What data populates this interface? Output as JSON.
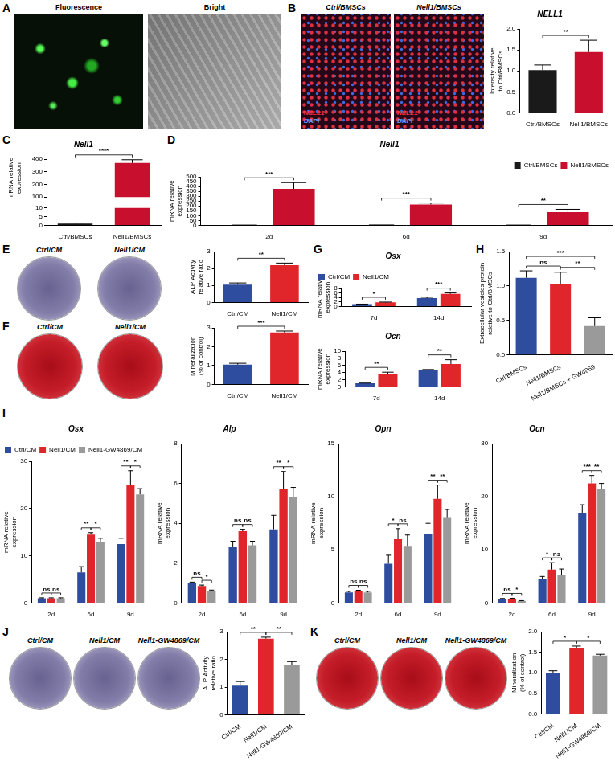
{
  "panel_labels": [
    "A",
    "B",
    "C",
    "D",
    "E",
    "F",
    "G",
    "H",
    "I",
    "J",
    "K"
  ],
  "images": [
    {
      "titles": [
        "Fluorescence",
        "Bright"
      ]
    },
    {
      "titles": [
        "Ctrl/BMSCs",
        "Nell1/BMSCs"
      ],
      "stains": [
        "NELL1",
        "DAPI"
      ]
    },
    {
      "titles": [
        "Ctrl/CM",
        "Nell1/CM"
      ]
    },
    {
      "titles": [
        "Ctrl/CM",
        "Nell1/CM"
      ]
    },
    {
      "titles": [
        "Ctrl/CM",
        "Nell1/CM",
        "Nell1-GW4869/CM"
      ]
    },
    {
      "titles": [
        "Ctrl/CM",
        "Nell1/CM",
        "Nell1-GW4869/CM"
      ]
    }
  ],
  "chart_data": [
    {
      "type": "bar",
      "title": "NELL1",
      "y_label": "Intensity relative to Ctrl/BMSCs",
      "categories": [
        "Ctrl/BMSCs",
        "Nell1/BMSCs"
      ],
      "values": [
        1.02,
        1.45
      ],
      "errors": [
        0.12,
        0.28
      ],
      "colors": [
        "#1a1a1a",
        "#c8102e"
      ],
      "ylim": [
        0,
        2
      ],
      "yticks": [
        {
          "value": 0,
          "label": "0.0"
        },
        {
          "value": 0.5,
          "label": "0.5"
        },
        {
          "value": 1,
          "label": "1.0"
        },
        {
          "value": 1.5,
          "label": "1.5"
        },
        {
          "value": 2,
          "label": "2.0"
        }
      ],
      "grid": false,
      "significance": [
        {
          "pair": [
            0,
            1
          ],
          "label": "**"
        }
      ]
    },
    {
      "type": "bar",
      "title": "Nell1",
      "y_label": "mRNA relative expression",
      "categories": [
        "Ctrl/BMSCs",
        "Nell1/BMSCs"
      ],
      "values": [
        1,
        370
      ],
      "errors": [
        0.3,
        25
      ],
      "colors": [
        "#1a1a1a",
        "#c8102e"
      ],
      "ylim": [
        0,
        400
      ],
      "axis_break": [
        10,
        100
      ],
      "yticks": [
        0,
        5,
        10,
        100,
        200,
        300,
        400
      ],
      "grid": false,
      "significance": [
        {
          "pair": [
            0,
            1
          ],
          "label": "****"
        }
      ]
    },
    {
      "type": "bar",
      "title": "Nell1",
      "y_label": "mRNA relative expression",
      "categories": [
        "2d",
        "6d",
        "9d"
      ],
      "series": [
        {
          "name": "Ctrl/BMSCs",
          "color": "#1a1a1a",
          "values": [
            2,
            3,
            2
          ],
          "errors": [
            0.5,
            0.5,
            0.5
          ]
        },
        {
          "name": "Nell1/BMSCs",
          "color": "#c8102e",
          "values": [
            375,
            215,
            135
          ],
          "errors": [
            65,
            15,
            30
          ]
        }
      ],
      "ylim": [
        0,
        500
      ],
      "yticks": [
        0,
        50,
        100,
        150,
        200,
        250,
        300,
        350,
        400,
        450,
        500
      ],
      "legend": "top-right",
      "grid": false,
      "significance": [
        {
          "group": 0,
          "pair": [
            0,
            1
          ],
          "label": "***"
        },
        {
          "group": 1,
          "pair": [
            0,
            1
          ],
          "label": "***"
        },
        {
          "group": 2,
          "pair": [
            0,
            1
          ],
          "label": "**"
        }
      ]
    },
    {
      "type": "bar",
      "y_label": "ALP Activity relative ratio",
      "categories": [
        "Ctrl/CM",
        "Nell1/CM"
      ],
      "values": [
        1.05,
        2.2
      ],
      "errors": [
        0.1,
        0.12
      ],
      "colors": [
        "#2e4d9e",
        "#e0262b"
      ],
      "ylim": [
        0,
        3
      ],
      "yticks": [
        0,
        1,
        2,
        3
      ],
      "grid": false,
      "significance": [
        {
          "pair": [
            0,
            1
          ],
          "label": "**"
        }
      ]
    },
    {
      "type": "bar",
      "y_label": "Mineralization (% of control)",
      "categories": [
        "Ctrl/CM",
        "Nell1/CM"
      ],
      "values": [
        1.05,
        2.75
      ],
      "errors": [
        0.07,
        0.08
      ],
      "colors": [
        "#2e4d9e",
        "#e0262b"
      ],
      "ylim": [
        0,
        3
      ],
      "yticks": [
        0,
        1,
        2,
        3
      ],
      "grid": false,
      "significance": [
        {
          "pair": [
            0,
            1
          ],
          "label": "***"
        }
      ]
    },
    {
      "type": "bar",
      "title": "Osx",
      "y_label": "mRNA relative expression",
      "categories": [
        "7d",
        "14d"
      ],
      "series": [
        {
          "name": "Ctrl/CM",
          "color": "#2e4d9e",
          "values": [
            1.0,
            3.7
          ],
          "errors": [
            0.05,
            0.4
          ]
        },
        {
          "name": "Nell1/CM",
          "color": "#e0262b",
          "values": [
            1.8,
            5.6
          ],
          "errors": [
            0.15,
            0.4
          ]
        }
      ],
      "ylim": [
        0,
        8
      ],
      "yticks": [
        0,
        2,
        4,
        6,
        8
      ],
      "legend": "top-left",
      "grid": false,
      "significance": [
        {
          "group": 0,
          "pair": [
            0,
            1
          ],
          "label": "*"
        },
        {
          "group": 1,
          "pair": [
            0,
            1
          ],
          "label": "***"
        }
      ]
    },
    {
      "type": "bar",
      "title": "Ocn",
      "y_label": "mRNA relative expression",
      "categories": [
        "7d",
        "14d"
      ],
      "series": [
        {
          "color": "#2e4d9e",
          "values": [
            1.0,
            4.7
          ],
          "errors": [
            0.05,
            0.15
          ]
        },
        {
          "color": "#e0262b",
          "values": [
            3.5,
            6.4
          ],
          "errors": [
            0.6,
            1.2
          ]
        }
      ],
      "ylim": [
        0,
        10
      ],
      "yticks": [
        0,
        2,
        4,
        6,
        8,
        10
      ],
      "grid": false,
      "significance": [
        {
          "group": 0,
          "pair": [
            0,
            1
          ],
          "label": "**"
        },
        {
          "group": 1,
          "pair": [
            0,
            1
          ],
          "label": "**"
        }
      ]
    },
    {
      "type": "bar",
      "y_label": "Extracellular vesicles protein relative to Ctrl/BMSCs",
      "categories": [
        "Ctrl/BMSCs",
        "Nell1/BMSCs",
        "Nell1/BMSCs + GW4869"
      ],
      "values": [
        1.12,
        1.03,
        0.42
      ],
      "errors": [
        0.1,
        0.17,
        0.12
      ],
      "colors": [
        "#2e4d9e",
        "#e0262b",
        "#9a9a9a"
      ],
      "ylim": [
        0,
        1.5
      ],
      "yticks": [
        {
          "value": 0,
          "label": "0.0"
        },
        {
          "value": 0.5,
          "label": "0.5"
        },
        {
          "value": 1,
          "label": "1.0"
        },
        {
          "value": 1.5,
          "label": "1.5"
        }
      ],
      "grid": false,
      "significance": [
        {
          "pair": [
            0,
            1
          ],
          "label": "ns"
        },
        {
          "pair": [
            1,
            2
          ],
          "label": "**"
        },
        {
          "pair": [
            0,
            2
          ],
          "label": "***"
        }
      ]
    },
    {
      "type": "bar",
      "title": "Osx",
      "y_label": "mRNA relative expression",
      "categories": [
        "2d",
        "6d",
        "9d"
      ],
      "series": [
        {
          "name": "Ctrl/CM",
          "color": "#2e4d9e",
          "values": [
            1,
            6.5,
            12.5
          ],
          "errors": [
            0.1,
            1.2,
            1.2
          ]
        },
        {
          "name": "Nell1/CM",
          "color": "#e0262b",
          "values": [
            1,
            14.5,
            25
          ],
          "errors": [
            0.1,
            0.4,
            3
          ]
        },
        {
          "name": "Nell1-GW4869/CM",
          "color": "#9a9a9a",
          "values": [
            1,
            13,
            23
          ],
          "errors": [
            0.1,
            0.7,
            1.2
          ]
        }
      ],
      "ylim": [
        0,
        30
      ],
      "yticks": [
        0,
        10,
        20,
        30
      ],
      "legend": "top-left",
      "grid": false,
      "significance": [
        {
          "group": 0,
          "pair": [
            0,
            1
          ],
          "label": "ns"
        },
        {
          "group": 0,
          "pair": [
            1,
            2
          ],
          "label": "ns"
        },
        {
          "group": 1,
          "pair": [
            0,
            1
          ],
          "label": "**"
        },
        {
          "group": 1,
          "pair": [
            1,
            2
          ],
          "label": "*"
        },
        {
          "group": 2,
          "pair": [
            0,
            1
          ],
          "label": "**"
        },
        {
          "group": 2,
          "pair": [
            1,
            2
          ],
          "label": "*"
        }
      ]
    },
    {
      "type": "bar",
      "title": "Alp",
      "y_label": "mRNA relative expression",
      "categories": [
        "2d",
        "6d",
        "9d"
      ],
      "series": [
        {
          "color": "#2e4d9e",
          "values": [
            1.0,
            2.8,
            3.7
          ],
          "errors": [
            0.05,
            0.3,
            0.7
          ]
        },
        {
          "color": "#e0262b",
          "values": [
            0.85,
            3.6,
            5.7
          ],
          "errors": [
            0.05,
            0.1,
            0.9
          ]
        },
        {
          "color": "#9a9a9a",
          "values": [
            0.6,
            2.9,
            5.3
          ],
          "errors": [
            0.05,
            0.2,
            0.5
          ]
        }
      ],
      "ylim": [
        0,
        8
      ],
      "yticks": [
        0,
        2,
        4,
        6,
        8
      ],
      "grid": false,
      "significance": [
        {
          "group": 0,
          "pair": [
            0,
            1
          ],
          "label": "ns"
        },
        {
          "group": 0,
          "pair": [
            1,
            2
          ],
          "label": "*"
        },
        {
          "group": 1,
          "pair": [
            0,
            1
          ],
          "label": "ns"
        },
        {
          "group": 1,
          "pair": [
            1,
            2
          ],
          "label": "ns"
        },
        {
          "group": 2,
          "pair": [
            0,
            1
          ],
          "label": "**"
        },
        {
          "group": 2,
          "pair": [
            1,
            2
          ],
          "label": "*"
        }
      ]
    },
    {
      "type": "bar",
      "title": "Opn",
      "y_label": "mRNA relative expression",
      "categories": [
        "2d",
        "6d",
        "9d"
      ],
      "series": [
        {
          "color": "#2e4d9e",
          "values": [
            1,
            3.7,
            6.5
          ],
          "errors": [
            0.1,
            0.8,
            1
          ]
        },
        {
          "color": "#e0262b",
          "values": [
            1.1,
            6,
            9.8
          ],
          "errors": [
            0.1,
            1,
            1.3
          ]
        },
        {
          "color": "#9a9a9a",
          "values": [
            1,
            5.3,
            8
          ],
          "errors": [
            0.1,
            1.1,
            0.8
          ]
        }
      ],
      "ylim": [
        0,
        15
      ],
      "yticks": [
        0,
        5,
        10,
        15
      ],
      "grid": false,
      "significance": [
        {
          "group": 0,
          "pair": [
            0,
            1
          ],
          "label": "ns"
        },
        {
          "group": 0,
          "pair": [
            1,
            2
          ],
          "label": "ns"
        },
        {
          "group": 1,
          "pair": [
            0,
            1
          ],
          "label": "*"
        },
        {
          "group": 1,
          "pair": [
            1,
            2
          ],
          "label": "ns"
        },
        {
          "group": 2,
          "pair": [
            0,
            1
          ],
          "label": "**"
        },
        {
          "group": 2,
          "pair": [
            1,
            2
          ],
          "label": "**"
        }
      ]
    },
    {
      "type": "bar",
      "title": "Ocn",
      "y_label": "mRNA relative expression",
      "categories": [
        "2d",
        "6d",
        "9d"
      ],
      "series": [
        {
          "color": "#2e4d9e",
          "values": [
            0.8,
            4.5,
            17
          ],
          "errors": [
            0.05,
            0.5,
            1.5
          ]
        },
        {
          "color": "#e0262b",
          "values": [
            0.8,
            6.3,
            22.5
          ],
          "errors": [
            0.1,
            1.3,
            1.5
          ]
        },
        {
          "color": "#9a9a9a",
          "values": [
            0.4,
            5.2,
            21.5
          ],
          "errors": [
            0.05,
            1.2,
            1
          ]
        }
      ],
      "ylim": [
        0,
        30
      ],
      "yticks": [
        0,
        10,
        20,
        30
      ],
      "grid": false,
      "significance": [
        {
          "group": 0,
          "pair": [
            0,
            1
          ],
          "label": "ns"
        },
        {
          "group": 0,
          "pair": [
            1,
            2
          ],
          "label": "*"
        },
        {
          "group": 1,
          "pair": [
            0,
            1
          ],
          "label": "*"
        },
        {
          "group": 1,
          "pair": [
            1,
            2
          ],
          "label": "ns"
        },
        {
          "group": 2,
          "pair": [
            0,
            1
          ],
          "label": "***"
        },
        {
          "group": 2,
          "pair": [
            1,
            2
          ],
          "label": "**"
        }
      ]
    },
    {
      "type": "bar",
      "y_label": "ALP Activity relative ratio",
      "categories": [
        "Ctrl/CM",
        "Nell1/CM",
        "Nell1-GW4869/CM"
      ],
      "values": [
        1.05,
        2.75,
        1.8
      ],
      "errors": [
        0.15,
        0.05,
        0.12
      ],
      "colors": [
        "#2e4d9e",
        "#e0262b",
        "#9a9a9a"
      ],
      "ylim": [
        0,
        3
      ],
      "yticks": [
        0,
        1,
        2,
        3
      ],
      "grid": false,
      "significance": [
        {
          "pair": [
            0,
            1
          ],
          "label": "**"
        },
        {
          "pair": [
            1,
            2
          ],
          "label": "**"
        }
      ]
    },
    {
      "type": "bar",
      "y_label": "Mineralization (% of control)",
      "categories": [
        "Ctrl/CM",
        "Nell1/CM",
        "Nell1-GW4869/CM"
      ],
      "values": [
        1.0,
        1.6,
        1.42
      ],
      "errors": [
        0.05,
        0.05,
        0.03
      ],
      "colors": [
        "#2e4d9e",
        "#e0262b",
        "#9a9a9a"
      ],
      "ylim": [
        0,
        2
      ],
      "yticks": [
        {
          "value": 0,
          "label": "0.0"
        },
        {
          "value": 0.5,
          "label": "0.5"
        },
        {
          "value": 1,
          "label": "1.0"
        },
        {
          "value": 1.5,
          "label": "1.5"
        },
        {
          "value": 2,
          "label": "2.0"
        }
      ],
      "grid": false,
      "significance": [
        {
          "pair": [
            0,
            1
          ],
          "label": "*"
        },
        {
          "pair": [
            1,
            2
          ],
          "label": "*"
        }
      ]
    }
  ]
}
